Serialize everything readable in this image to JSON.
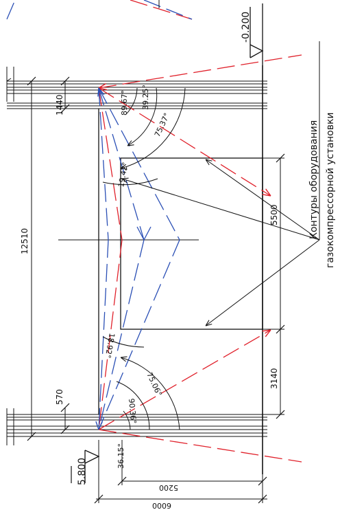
{
  "levels": {
    "bottom": "5.800",
    "top": "-0.200"
  },
  "dimensions": {
    "total_height": "12510",
    "top_offset": "1440",
    "bottom_offset": "570",
    "equipment_height": "5500",
    "equipment_to_beam": "3140",
    "width_inner": "5200",
    "width_outer": "6000"
  },
  "angles": {
    "top": [
      "89.67°",
      "39.25°",
      "75.37°",
      "19.42°"
    ],
    "bottom": [
      "18.92°",
      "75.06°",
      "90.36°",
      "36.15°"
    ]
  },
  "annotation": {
    "line1": "Контуры оборудования",
    "line2": "газокомпрессорной установки"
  },
  "colors": {
    "red": "#e0202a",
    "blue": "#2a4fb5",
    "ink": "#111111"
  }
}
